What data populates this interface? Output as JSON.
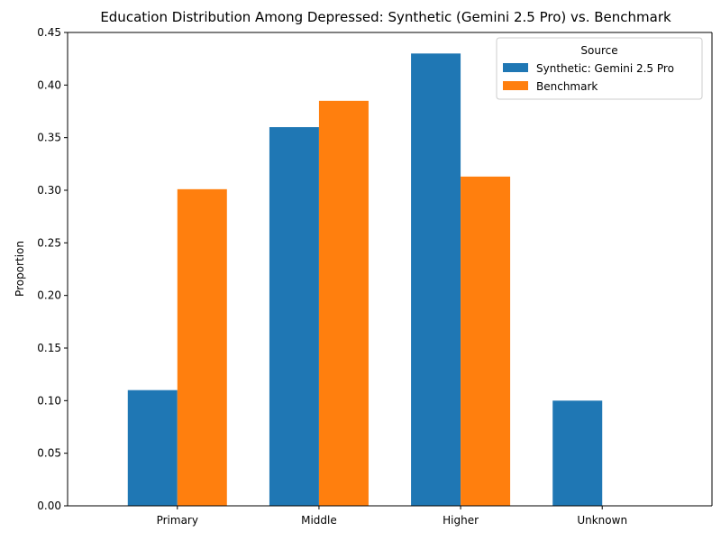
{
  "chart_data": {
    "type": "bar",
    "title": "Education Distribution Among Depressed: Synthetic (Gemini 2.5 Pro) vs. Benchmark",
    "xlabel": "",
    "ylabel": "Proportion",
    "categories": [
      "Primary",
      "Middle",
      "Higher",
      "Unknown"
    ],
    "series": [
      {
        "name": "Synthetic: Gemini 2.5 Pro",
        "color": "#1f77b4",
        "values": [
          0.11,
          0.36,
          0.43,
          0.1
        ]
      },
      {
        "name": "Benchmark",
        "color": "#ff7f0e",
        "values": [
          0.301,
          0.385,
          0.313,
          0.0
        ]
      }
    ],
    "ylim": [
      0,
      0.45
    ],
    "yticks": [
      "0.00",
      "0.05",
      "0.10",
      "0.15",
      "0.20",
      "0.25",
      "0.30",
      "0.35",
      "0.40",
      "0.45"
    ],
    "legend": {
      "title": "Source",
      "placement": "top-right"
    },
    "grid": false
  }
}
